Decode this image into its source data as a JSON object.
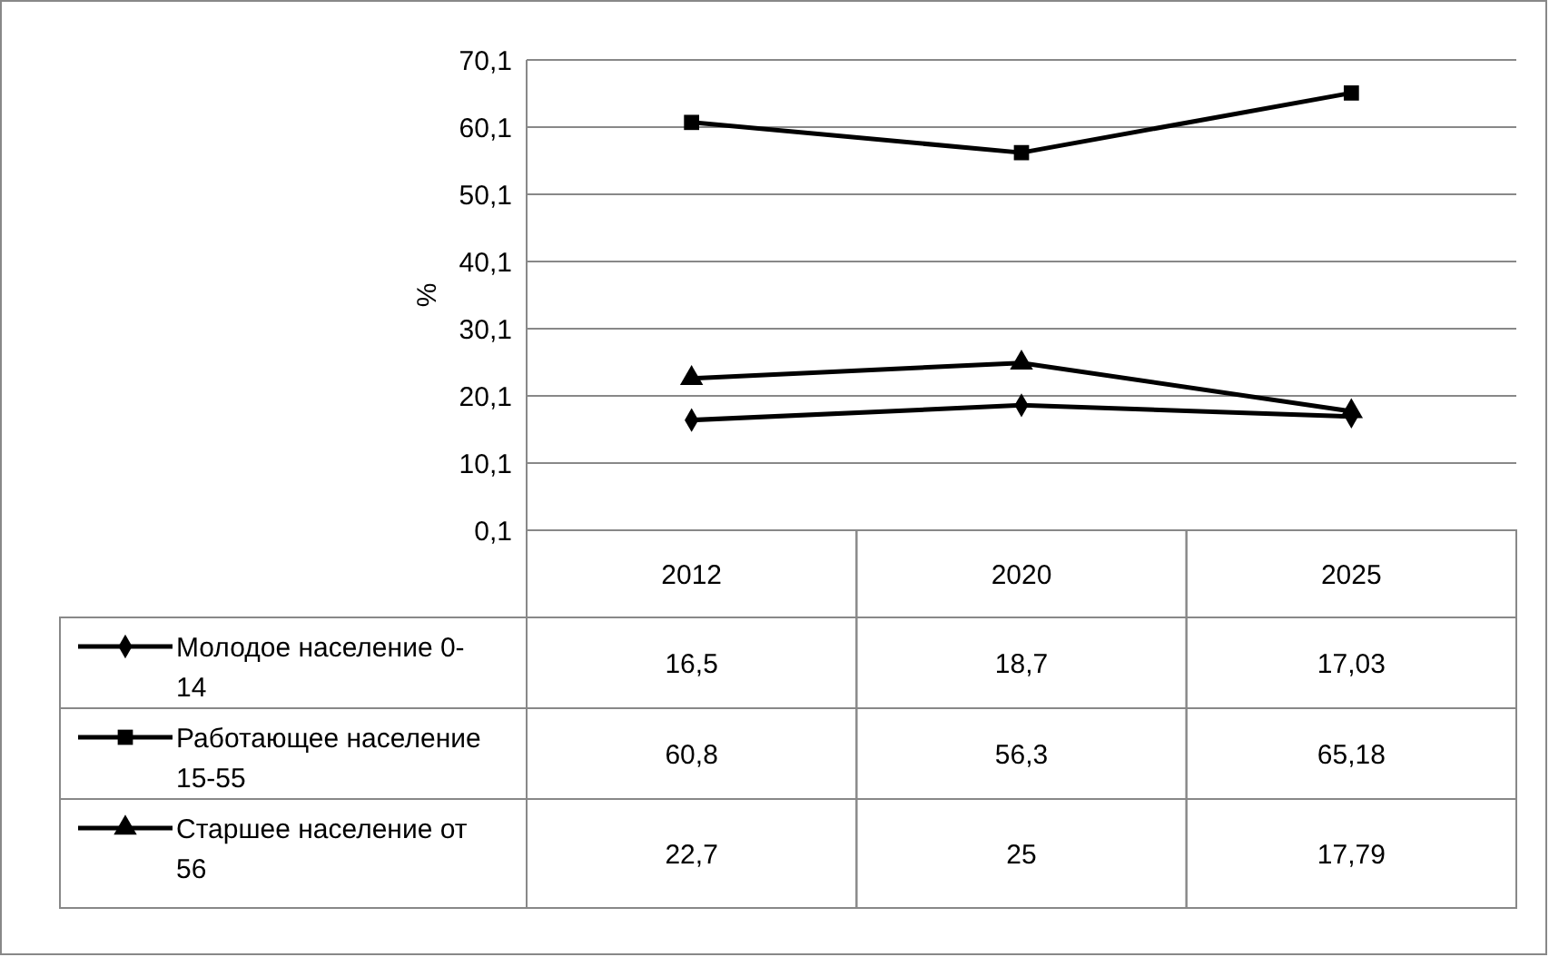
{
  "chart_data": {
    "type": "line",
    "ylabel": "%",
    "categories": [
      "2012",
      "2020",
      "2025"
    ],
    "ylim": [
      0.1,
      70.1
    ],
    "yticks": [
      {
        "value": 0.1,
        "label": "0,1"
      },
      {
        "value": 10.1,
        "label": "10,1"
      },
      {
        "value": 20.1,
        "label": "20,1"
      },
      {
        "value": 30.1,
        "label": "30,1"
      },
      {
        "value": 40.1,
        "label": "40,1"
      },
      {
        "value": 50.1,
        "label": "50,1"
      },
      {
        "value": 60.1,
        "label": "60,1"
      },
      {
        "value": 70.1,
        "label": "70,1"
      }
    ],
    "grid": "y",
    "legend": "bottom",
    "line_style": "solid",
    "series": [
      {
        "name": "Молодое население 0-14",
        "color": "#000000",
        "marker": "diamond",
        "values": [
          16.5,
          18.7,
          17.03
        ],
        "value_labels": [
          "16,5",
          "18,7",
          "17,03"
        ]
      },
      {
        "name": "Работающее население 15-55",
        "color": "#000000",
        "marker": "square",
        "values": [
          60.8,
          56.3,
          65.18
        ],
        "value_labels": [
          "60,8",
          "56,3",
          "65,18"
        ]
      },
      {
        "name": "Старшее население от 56",
        "color": "#000000",
        "marker": "triangle",
        "values": [
          22.7,
          25,
          17.79
        ],
        "value_labels": [
          "22,7",
          "25",
          "17,79"
        ]
      }
    ]
  }
}
